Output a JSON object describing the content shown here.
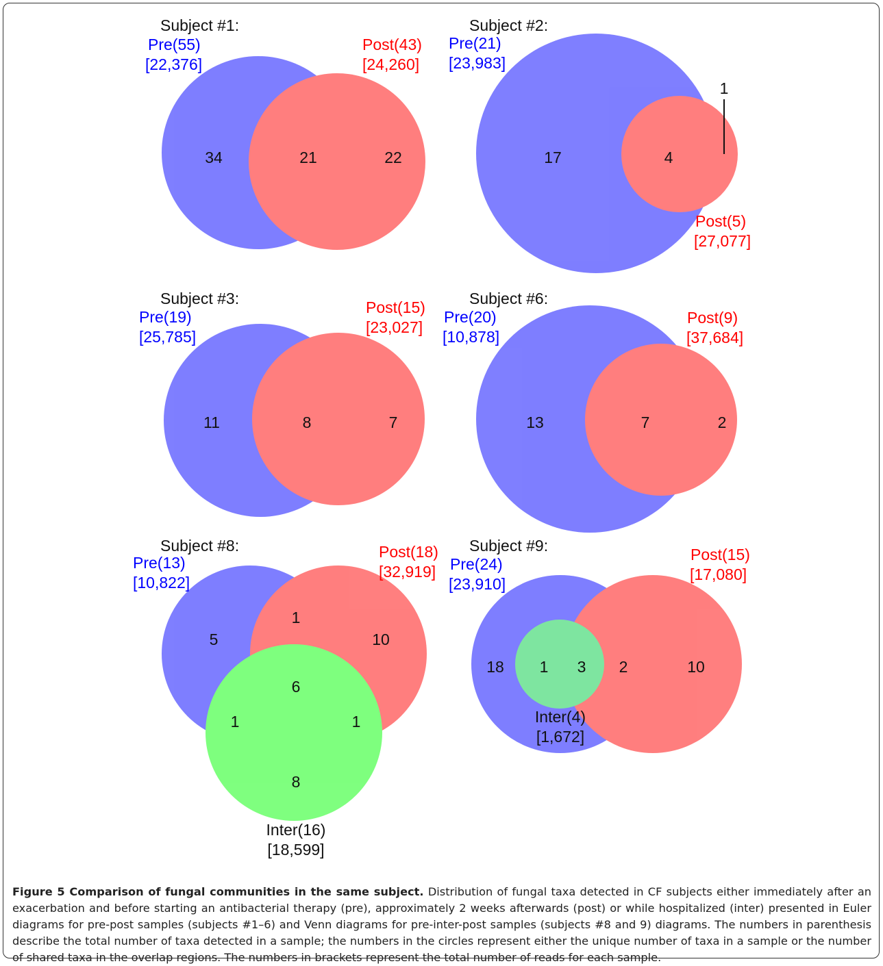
{
  "colors": {
    "pre": "#0000ff",
    "post": "#ff0000",
    "inter": "#00ee00",
    "text": "#111111"
  },
  "diagrams": [
    {
      "title": "Subject #1:",
      "pre": {
        "label": "Pre(55)",
        "reads": "[22,376]"
      },
      "post": {
        "label": "Post(43)",
        "reads": "[24,260]"
      },
      "regions": {
        "pre_only": "34",
        "shared": "21",
        "post_only": "22"
      }
    },
    {
      "title": "Subject #2:",
      "pre": {
        "label": "Pre(21)",
        "reads": "[23,983]"
      },
      "post": {
        "label": "Post(5)",
        "reads": "[27,077]"
      },
      "regions": {
        "pre_only": "17",
        "shared": "4",
        "post_only": "1"
      }
    },
    {
      "title": "Subject #3:",
      "pre": {
        "label": "Pre(19)",
        "reads": "[25,785]"
      },
      "post": {
        "label": "Post(15)",
        "reads": "[23,027]"
      },
      "regions": {
        "pre_only": "11",
        "shared": "8",
        "post_only": "7"
      }
    },
    {
      "title": "Subject #6:",
      "pre": {
        "label": "Pre(20)",
        "reads": "[10,878]"
      },
      "post": {
        "label": "Post(9)",
        "reads": "[37,684]"
      },
      "regions": {
        "pre_only": "13",
        "shared": "7",
        "post_only": "2"
      }
    },
    {
      "title": "Subject #8:",
      "pre": {
        "label": "Pre(13)",
        "reads": "[10,822]"
      },
      "post": {
        "label": "Post(18)",
        "reads": "[32,919]"
      },
      "inter": {
        "label": "Inter(16)",
        "reads": "[18,599]"
      },
      "regions": {
        "pre_only": "5",
        "pre_post": "1",
        "post_only": "10",
        "all": "6",
        "pre_inter": "1",
        "post_inter": "1",
        "inter_only": "8"
      }
    },
    {
      "title": "Subject #9:",
      "pre": {
        "label": "Pre(24)",
        "reads": "[23,910]"
      },
      "post": {
        "label": "Post(15)",
        "reads": "[17,080]"
      },
      "inter": {
        "label": "Inter(4)",
        "reads": "[1,672]"
      },
      "regions": {
        "pre_only": "18",
        "pre_inter": "1",
        "all": "3",
        "pre_post": "2",
        "post_only": "10"
      }
    }
  ],
  "caption": {
    "title": "Figure 5 Comparison of fungal communities in the same subject.",
    "text": "Distribution of fungal taxa detected in CF subjects either immediately after an exacerbation and before starting an antibacterial therapy (pre), approximately 2 weeks afterwards (post) or while hospitalized (inter) presented in Euler diagrams for pre-post samples (subjects #1–6) and Venn diagrams for pre-inter-post samples (subjects #8 and 9) diagrams. The numbers in parenthesis describe the total number of taxa detected in a sample; the numbers in the circles represent either the unique number of taxa in a sample or the number of shared taxa in the overlap regions. The numbers in brackets represent the total number of reads for each sample."
  }
}
